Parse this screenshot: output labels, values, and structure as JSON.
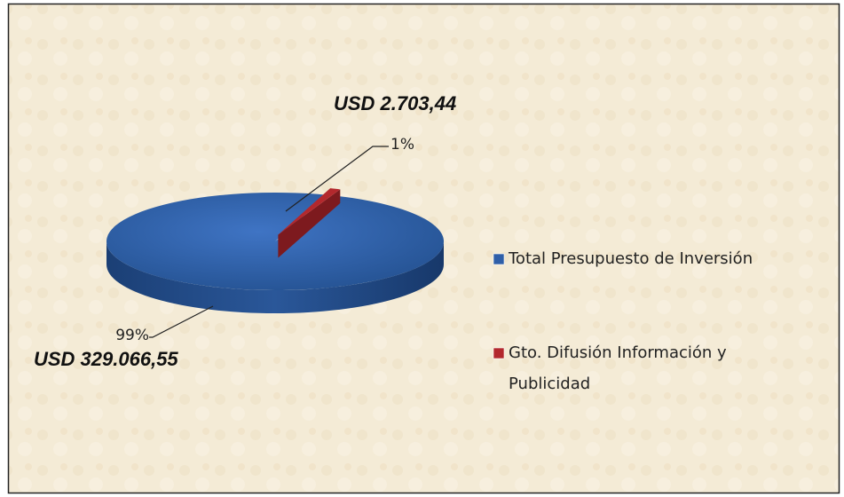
{
  "chart_data": {
    "type": "pie",
    "categories": [
      "Total Presupuesto de Inversión",
      "Gto. Difusión Información y Publicidad"
    ],
    "values": [
      99,
      1
    ],
    "value_labels": [
      "99%",
      "1%"
    ],
    "amount_labels": [
      "USD 329.066,55",
      "USD 2.703,44"
    ],
    "colors": [
      "#2f5fa8",
      "#b3282d"
    ],
    "legend": "right"
  }
}
